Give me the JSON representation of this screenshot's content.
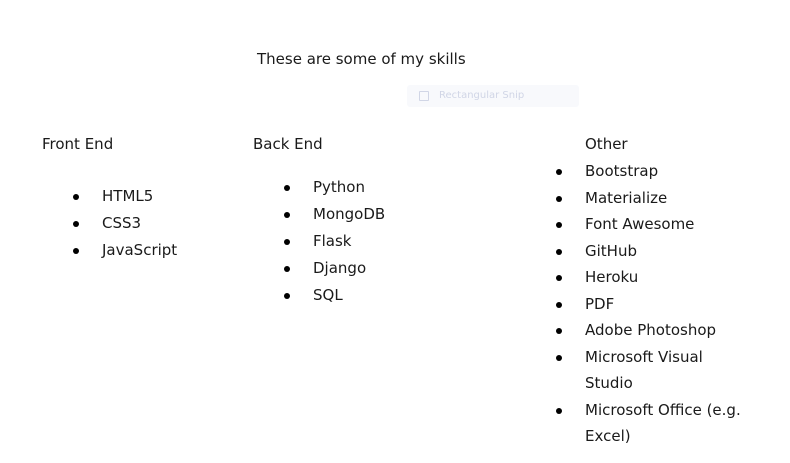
{
  "heading": "These are some of my skills",
  "snip_overlay": {
    "label": "Rectangular Snip",
    "icon": "rectangle-snip-icon"
  },
  "columns": {
    "front_end": {
      "title": "Front End",
      "items": [
        "HTML5",
        "CSS3",
        "JavaScript"
      ]
    },
    "back_end": {
      "title": "Back End",
      "items": [
        "Python",
        "MongoDB",
        "Flask",
        "Django",
        "SQL"
      ]
    },
    "other": {
      "title": "Other",
      "items": [
        "Bootstrap",
        "Materialize",
        "Font Awesome",
        "GitHub",
        "Heroku",
        "PDF",
        "Adobe Photoshop",
        "Microsoft Visual Studio",
        "Microsoft Office (e.g. Excel)"
      ]
    }
  }
}
